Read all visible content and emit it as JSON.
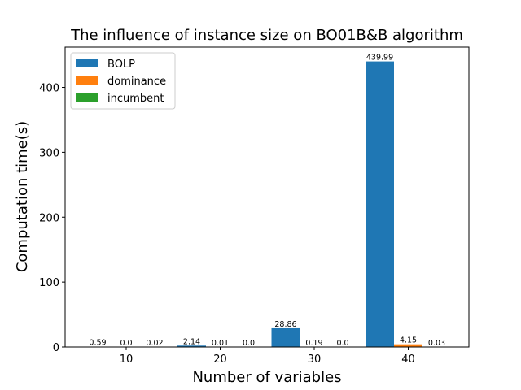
{
  "chart_data": {
    "type": "bar",
    "title": "The influence of instance size on BO01B&B algorithm",
    "xlabel": "Number of variables",
    "ylabel": "Computation time(s)",
    "categories": [
      "10",
      "20",
      "30",
      "40"
    ],
    "series": [
      {
        "name": "BOLP",
        "color": "#1f77b4",
        "values": [
          0.59,
          2.14,
          28.86,
          439.99
        ],
        "labels": [
          "0.59",
          "2.14",
          "28.86",
          "439.99"
        ]
      },
      {
        "name": "dominance",
        "color": "#ff7f0e",
        "values": [
          0.0,
          0.01,
          0.19,
          4.15
        ],
        "labels": [
          "0.0",
          "0.01",
          "0.19",
          "4.15"
        ]
      },
      {
        "name": "incumbent",
        "color": "#2ca02c",
        "values": [
          0.02,
          0.0,
          0.0,
          0.03
        ],
        "labels": [
          "0.02",
          "0.0",
          "0.0",
          "0.03"
        ]
      }
    ],
    "yticks": [
      0,
      100,
      200,
      300,
      400
    ],
    "ylim": [
      0,
      462
    ],
    "grid": false,
    "legend": "top-left"
  }
}
